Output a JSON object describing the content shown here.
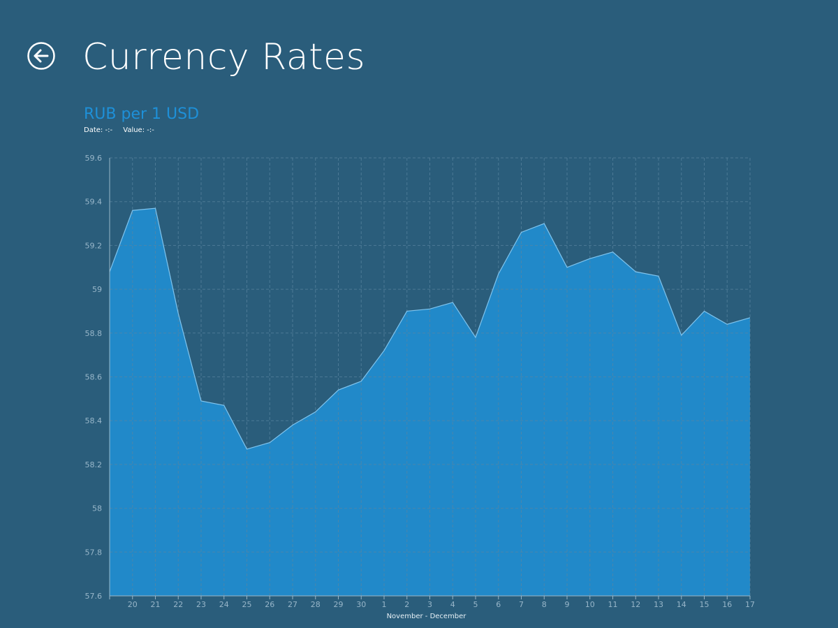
{
  "header": {
    "title": "Currency Rates",
    "back_icon": "back-arrow-icon"
  },
  "readout": {
    "date_label": "Date:",
    "date_value": "-:-",
    "value_label": "Value:",
    "value_value": "-:-"
  },
  "colors": {
    "background": "#2a5d7b",
    "accent": "#1e90d8",
    "area_fill": "#2189c9",
    "line": "#7fc4ee",
    "grid": "#5b86a0",
    "axis": "#98b6c9"
  },
  "chart_data": {
    "type": "area",
    "title": "RUB per 1 USD",
    "xlabel": "November - December",
    "ylabel": "",
    "ylim": [
      57.6,
      59.6
    ],
    "yticks": [
      57.6,
      57.8,
      58,
      58.2,
      58.4,
      58.6,
      58.8,
      59,
      59.2,
      59.4,
      59.6
    ],
    "ytick_labels": [
      "57.6",
      "57.8",
      "58",
      "58.2",
      "58.4",
      "58.6",
      "58.8",
      "59",
      "59.2",
      "59.4",
      "59.6"
    ],
    "grid": true,
    "x": [
      "19",
      "20",
      "21",
      "22",
      "23",
      "24",
      "25",
      "26",
      "27",
      "28",
      "29",
      "30",
      "1",
      "2",
      "3",
      "4",
      "5",
      "6",
      "7",
      "8",
      "9",
      "10",
      "11",
      "12",
      "13",
      "14",
      "15",
      "16",
      "17"
    ],
    "x_tick_labels": [
      "",
      "20",
      "21",
      "22",
      "23",
      "24",
      "25",
      "26",
      "27",
      "28",
      "29",
      "30",
      "1",
      "2",
      "3",
      "4",
      "5",
      "6",
      "7",
      "8",
      "9",
      "10",
      "11",
      "12",
      "13",
      "14",
      "15",
      "16",
      "17"
    ],
    "series": [
      {
        "values": [
          59.08,
          59.36,
          59.37,
          58.89,
          58.49,
          58.47,
          58.27,
          58.3,
          58.38,
          58.44,
          58.54,
          58.58,
          58.72,
          58.9,
          58.91,
          58.94,
          58.78,
          59.07,
          59.26,
          59.3,
          59.1,
          59.14,
          59.17,
          59.08,
          59.06,
          58.79,
          58.9,
          58.84,
          58.87
        ]
      }
    ]
  }
}
